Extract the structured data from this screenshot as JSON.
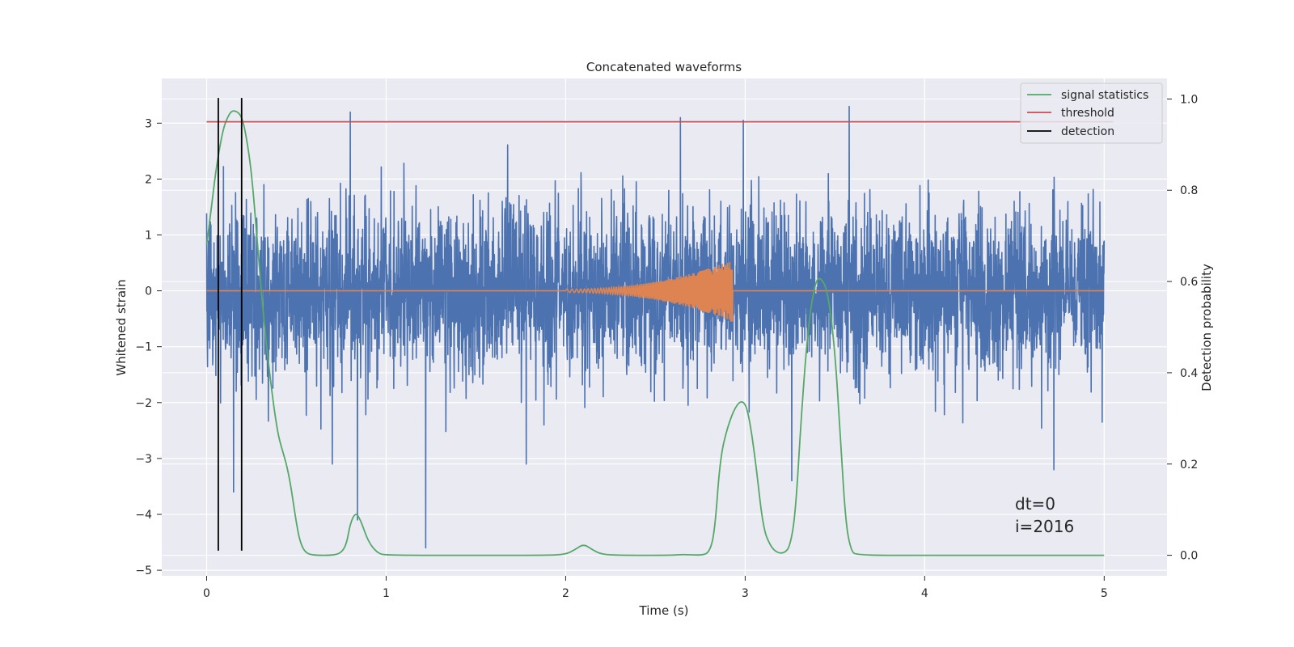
{
  "chart_data": {
    "type": "line",
    "title": "Concatenated waveforms",
    "xlabel": "Time (s)",
    "ylabel": "Whitened strain",
    "ylabel_right": "Detection probability",
    "xlim": [
      -0.25,
      5.35
    ],
    "ylim": [
      -5.1,
      3.8
    ],
    "ylim_right": [
      -0.045,
      1.045
    ],
    "xticks": [
      0,
      1,
      2,
      3,
      4,
      5
    ],
    "yticks": [
      -5,
      -4,
      -3,
      -2,
      -1,
      0,
      1,
      2,
      3
    ],
    "yticks_right": [
      0.0,
      0.2,
      0.4,
      0.6,
      0.8,
      1.0
    ],
    "xtick_labels": [
      "0",
      "1",
      "2",
      "3",
      "4",
      "5"
    ],
    "ytick_labels": [
      "−5",
      "−4",
      "−3",
      "−2",
      "−1",
      "0",
      "1",
      "2",
      "3"
    ],
    "ytick_right_labels": [
      "0.0",
      "0.2",
      "0.4",
      "0.6",
      "0.8",
      "1.0"
    ],
    "grid": true,
    "legend_position": "top-right",
    "colors": {
      "strain": "#4c72b0",
      "template": "#dd8452",
      "signal": "#55a868",
      "threshold": "#c44e52",
      "detection": "#000000",
      "background": "#eaeaf2",
      "grid": "#ffffff"
    },
    "series": [
      {
        "name": "",
        "kind": "noise",
        "axis": "left",
        "x_range": [
          0,
          5
        ],
        "sigma": 0.75,
        "spikes": [
          {
            "x": 0.15,
            "y": -3.6
          },
          {
            "x": 0.8,
            "y": 3.2
          },
          {
            "x": 0.84,
            "y": -4.1
          },
          {
            "x": 1.22,
            "y": -4.6
          },
          {
            "x": 2.64,
            "y": 3.1
          },
          {
            "x": 2.99,
            "y": 3.05
          },
          {
            "x": 3.26,
            "y": -3.4
          },
          {
            "x": 3.58,
            "y": 3.3
          },
          {
            "x": 4.72,
            "y": -3.2
          },
          {
            "x": 1.78,
            "y": -3.1
          },
          {
            "x": 0.7,
            "y": -3.1
          }
        ]
      },
      {
        "name": "",
        "kind": "chirp",
        "axis": "left",
        "x_range": [
          0,
          5
        ],
        "chirp_start": 2.0,
        "chirp_end": 2.93,
        "amp_start": 0.03,
        "amp_end": 0.55,
        "y_min": -0.55,
        "y_max": 0.38
      },
      {
        "name": "signal statistics",
        "kind": "line",
        "axis": "right",
        "points": [
          [
            0.0,
            0.68
          ],
          [
            0.02,
            0.74
          ],
          [
            0.05,
            0.84
          ],
          [
            0.08,
            0.91
          ],
          [
            0.1,
            0.945
          ],
          [
            0.13,
            0.97
          ],
          [
            0.15,
            0.975
          ],
          [
            0.18,
            0.97
          ],
          [
            0.2,
            0.955
          ],
          [
            0.22,
            0.92
          ],
          [
            0.25,
            0.84
          ],
          [
            0.28,
            0.7
          ],
          [
            0.3,
            0.6
          ],
          [
            0.33,
            0.47
          ],
          [
            0.36,
            0.37
          ],
          [
            0.38,
            0.31
          ],
          [
            0.4,
            0.26
          ],
          [
            0.43,
            0.22
          ],
          [
            0.45,
            0.19
          ],
          [
            0.47,
            0.15
          ],
          [
            0.5,
            0.07
          ],
          [
            0.52,
            0.03
          ],
          [
            0.55,
            0.005
          ],
          [
            0.6,
            0.0
          ],
          [
            0.7,
            0.0
          ],
          [
            0.75,
            0.005
          ],
          [
            0.78,
            0.025
          ],
          [
            0.8,
            0.07
          ],
          [
            0.83,
            0.095
          ],
          [
            0.86,
            0.075
          ],
          [
            0.9,
            0.03
          ],
          [
            0.95,
            0.005
          ],
          [
            1.0,
            0.0
          ],
          [
            1.5,
            0.0
          ],
          [
            1.9,
            0.0
          ],
          [
            2.0,
            0.002
          ],
          [
            2.05,
            0.012
          ],
          [
            2.1,
            0.025
          ],
          [
            2.15,
            0.012
          ],
          [
            2.2,
            0.002
          ],
          [
            2.3,
            0.0
          ],
          [
            2.6,
            0.0
          ],
          [
            2.65,
            0.002
          ],
          [
            2.75,
            0.0
          ],
          [
            2.8,
            0.005
          ],
          [
            2.83,
            0.05
          ],
          [
            2.86,
            0.21
          ],
          [
            2.9,
            0.28
          ],
          [
            2.95,
            0.33
          ],
          [
            2.99,
            0.34
          ],
          [
            3.02,
            0.31
          ],
          [
            3.06,
            0.2
          ],
          [
            3.1,
            0.06
          ],
          [
            3.14,
            0.02
          ],
          [
            3.18,
            0.005
          ],
          [
            3.22,
            0.005
          ],
          [
            3.25,
            0.02
          ],
          [
            3.28,
            0.09
          ],
          [
            3.31,
            0.29
          ],
          [
            3.35,
            0.5
          ],
          [
            3.39,
            0.6
          ],
          [
            3.42,
            0.61
          ],
          [
            3.46,
            0.58
          ],
          [
            3.5,
            0.45
          ],
          [
            3.53,
            0.26
          ],
          [
            3.56,
            0.07
          ],
          [
            3.59,
            0.01
          ],
          [
            3.62,
            0.0
          ],
          [
            4.0,
            0.0
          ],
          [
            5.0,
            0.0
          ]
        ]
      },
      {
        "name": "threshold",
        "kind": "hline",
        "axis": "right",
        "value": 0.95,
        "x_range": [
          0,
          5.05
        ]
      },
      {
        "name": "detection",
        "kind": "vlines",
        "axis": "left",
        "x": [
          0.065,
          0.195
        ],
        "y_range": [
          -4.65,
          3.45
        ]
      }
    ],
    "annotations": [
      "dt=0",
      "i=2016"
    ]
  }
}
